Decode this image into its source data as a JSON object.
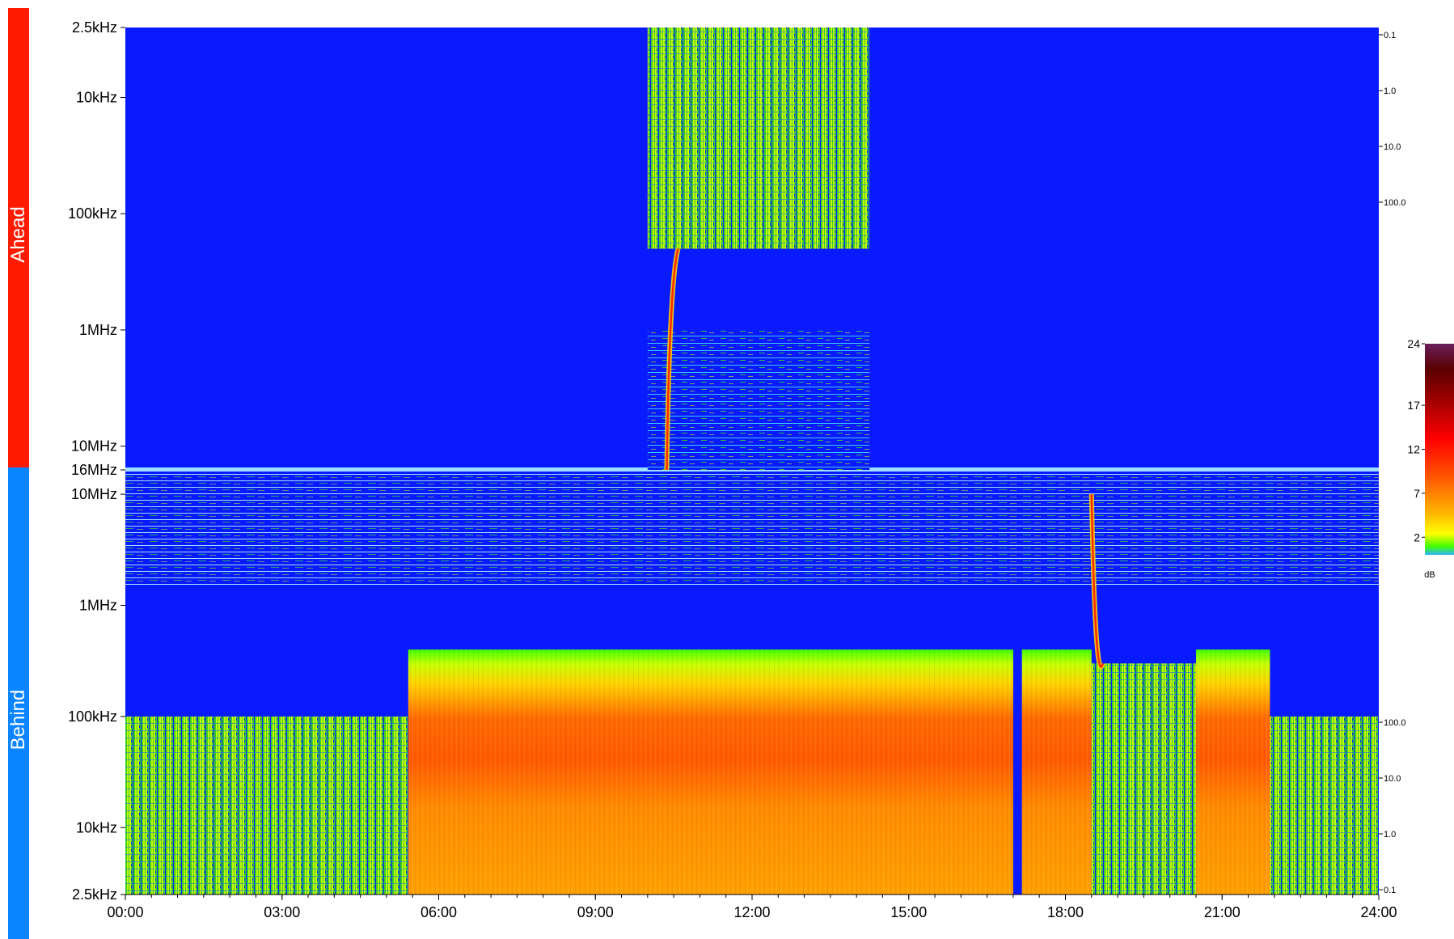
{
  "chart_data": {
    "type": "heatmap",
    "panels": [
      {
        "name": "Ahead",
        "y_ticks": [
          "2.5kHz",
          "10kHz",
          "100kHz",
          "1MHz",
          "10MHz",
          "16MHz"
        ],
        "right_ticks": [
          "0.1",
          "1.0",
          "10.0",
          "100.0"
        ]
      },
      {
        "name": "Behind",
        "y_ticks": [
          "10MHz",
          "1MHz",
          "100kHz",
          "10kHz",
          "2.5kHz"
        ],
        "right_ticks": [
          "100.0",
          "10.0",
          "1.0",
          "0.1"
        ]
      }
    ],
    "x_ticks": [
      "00:00",
      "03:00",
      "06:00",
      "09:00",
      "12:00",
      "15:00",
      "18:00",
      "21:00",
      "24:00"
    ],
    "colorbar": {
      "unit": "dB",
      "ticks": [
        "24",
        "17",
        "12",
        "7",
        "2"
      ],
      "range": [
        0,
        24
      ],
      "colors": [
        "#2bb2ff",
        "#00e6a0",
        "#40ff00",
        "#c8ff00",
        "#ffff00",
        "#ffc800",
        "#ff9600",
        "#ff6400",
        "#ff3c00",
        "#ff0000",
        "#c80000",
        "#8c0000",
        "#5a0000",
        "#6a1e5a"
      ]
    },
    "background_color": "#0a1aff",
    "activity_blocks": [
      {
        "panel": "Ahead",
        "start": "10:00",
        "end": "14:15",
        "level": "low",
        "band": "2.5kHz-200kHz"
      },
      {
        "panel": "Ahead",
        "start": "10:00",
        "end": "14:15",
        "level": "sparse",
        "band": "1MHz-16MHz"
      },
      {
        "panel": "Behind",
        "start": "00:00",
        "end": "05:25",
        "level": "low",
        "band": "2.5kHz-100kHz"
      },
      {
        "panel": "Behind",
        "start": "05:25",
        "end": "17:00",
        "level": "high",
        "band": "2.5kHz-400kHz"
      },
      {
        "panel": "Behind",
        "start": "17:10",
        "end": "18:30",
        "level": "high",
        "band": "2.5kHz-400kHz"
      },
      {
        "panel": "Behind",
        "start": "18:30",
        "end": "20:30",
        "level": "low",
        "band": "2.5kHz-300kHz"
      },
      {
        "panel": "Behind",
        "start": "20:30",
        "end": "21:55",
        "level": "high",
        "band": "2.5kHz-400kHz"
      },
      {
        "panel": "Behind",
        "start": "21:55",
        "end": "24:00",
        "level": "low",
        "band": "2.5kHz-100kHz"
      }
    ],
    "bursts": [
      {
        "panel": "Ahead",
        "time": "10:22",
        "from": "16MHz",
        "to": "200kHz"
      },
      {
        "panel": "Behind",
        "time": "18:30",
        "from": "10MHz",
        "to": "300kHz"
      }
    ]
  }
}
